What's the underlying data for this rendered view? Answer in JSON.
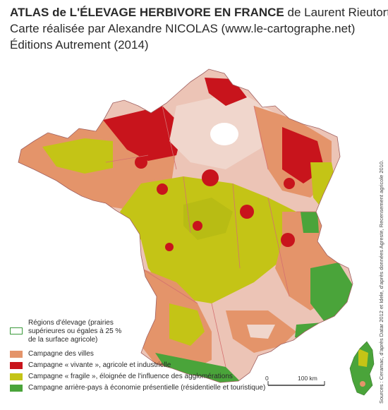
{
  "header": {
    "title_bold": "ATLAS de L'ÉLEVAGE HERBIVORE EN FRANCE",
    "title_rest": " de Laurent Rieutort",
    "line2": "Carte réalisée par Alexandre NICOLAS (www.le-cartographe.net)",
    "line3": "Éditions Autrement (2014)"
  },
  "legend": {
    "regions_label_1": "Régions d'élevage (prairies",
    "regions_label_2": "supérieures ou égales à 25 %",
    "regions_label_3": "de la surface agricole)",
    "villes": "Campagne des villes",
    "vivante": "Campagne « vivante », agricole et industrielle",
    "fragile": "Campagne « fragile », éloignée de l'influence des agglomérations",
    "arriere": "Campagne arrière-pays à économie présentielle (résidentielle et touristique)"
  },
  "scale": {
    "zero": "0",
    "hundred": "100 km"
  },
  "source": "Sources : Ceramac, d'après Datar 2012 et Idele, d'après données Agreste, Recensement agricole 2010.",
  "colors": {
    "villes": "#e4946a",
    "vivante": "#c8141c",
    "fragile": "#c4c416",
    "arriere": "#4aa43a",
    "pale": "#efc8bc",
    "region_outline": "#3c9a3c"
  }
}
